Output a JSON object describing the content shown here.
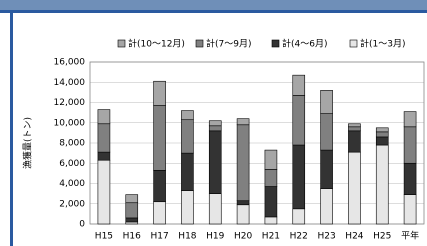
{
  "chart_data": {
    "type": "stacked-bar",
    "y_label": "漁獲量(トン)",
    "categories": [
      "H15",
      "H16",
      "H17",
      "H18",
      "H19",
      "H20",
      "H21",
      "H22",
      "H23",
      "H24",
      "H25",
      "平年"
    ],
    "series": [
      {
        "name": "計(1〜3月)",
        "color": "#e6e6e6",
        "values": [
          6300,
          200,
          2200,
          3300,
          3000,
          1900,
          700,
          1500,
          3500,
          7100,
          7800,
          2900
        ]
      },
      {
        "name": "計(4〜6月)",
        "color": "#333333",
        "values": [
          800,
          400,
          3100,
          3700,
          6200,
          400,
          3000,
          6300,
          3800,
          2100,
          800,
          3100
        ]
      },
      {
        "name": "計(7〜9月)",
        "color": "#808080",
        "values": [
          2800,
          1500,
          6400,
          3300,
          500,
          7500,
          1700,
          4900,
          3600,
          400,
          500,
          3600
        ]
      },
      {
        "name": "計(10〜12月)",
        "color": "#a6a6a6",
        "values": [
          1400,
          800,
          2400,
          900,
          500,
          600,
          1900,
          2000,
          2300,
          300,
          400,
          1500
        ]
      }
    ],
    "legend_order": [
      3,
      2,
      1,
      0
    ],
    "ylim": [
      0,
      16000
    ],
    "yticks": [
      0,
      {
        "value": 2000,
        "label": "2,000"
      },
      {
        "value": 4000,
        "label": "4,000"
      },
      {
        "value": 6000,
        "label": "6,000"
      },
      {
        "value": 8000,
        "label": "8,000"
      },
      {
        "value": 10000,
        "label": "10,000"
      },
      {
        "value": 12000,
        "label": "12,000"
      },
      {
        "value": 14000,
        "label": "14,000"
      },
      {
        "value": 16000,
        "label": "16,000"
      }
    ],
    "grid": true
  }
}
